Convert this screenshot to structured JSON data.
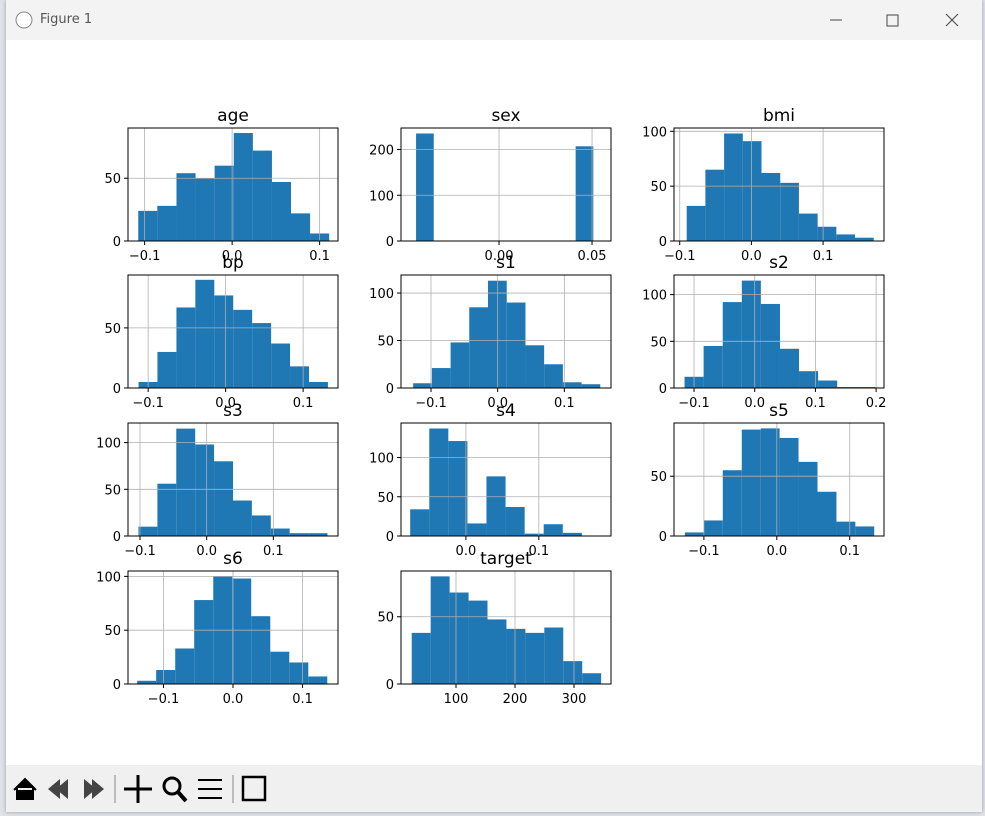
{
  "window": {
    "title": "Figure 1"
  },
  "chart_data": [
    {
      "type": "histogram",
      "title": "age",
      "color": "#1f77b4",
      "grid": true,
      "bins": [
        -0.1073,
        -0.0855,
        -0.0636,
        -0.0418,
        -0.02,
        0.0019,
        0.0237,
        0.0455,
        0.0673,
        0.0891,
        0.1109
      ],
      "values": [
        24,
        28,
        54,
        50,
        60,
        86,
        72,
        47,
        22,
        6
      ],
      "xlim": [
        -0.119,
        0.121
      ],
      "xticks": [
        {
          "value": -0.1,
          "label": "−0.1"
        },
        {
          "value": 0,
          "label": "0.0"
        },
        0.1
      ],
      "ylim": [
        0,
        90
      ],
      "yticks": [
        0,
        50
      ]
    },
    {
      "type": "histogram",
      "title": "sex",
      "color": "#1f77b4",
      "grid": true,
      "bins": [
        -0.0446,
        -0.0351,
        -0.0256,
        -0.016,
        -0.0065,
        0.003,
        0.0126,
        0.0221,
        0.0316,
        0.0412,
        0.0507
      ],
      "values": [
        235,
        0,
        0,
        0,
        0,
        0,
        0,
        0,
        0,
        207
      ],
      "xlim": [
        -0.0527,
        0.0602
      ],
      "xticks": [
        {
          "value": 0,
          "label": "0.00"
        },
        0.05
      ],
      "ylim": [
        0,
        247
      ],
      "yticks": [
        0,
        100,
        200
      ]
    },
    {
      "type": "histogram",
      "title": "bmi",
      "color": "#1f77b4",
      "grid": true,
      "bins": [
        -0.0903,
        -0.0642,
        -0.0381,
        -0.012,
        0.0141,
        0.0402,
        0.0663,
        0.0924,
        0.1185,
        0.1445,
        0.1706
      ],
      "values": [
        32,
        65,
        98,
        91,
        62,
        53,
        25,
        13,
        6,
        3
      ],
      "xlim": [
        -0.108,
        0.185
      ],
      "xticks": [
        {
          "value": -0.1,
          "label": "−0.1"
        },
        {
          "value": 0,
          "label": "0.0"
        },
        0.1
      ],
      "ylim": [
        0,
        103
      ],
      "yticks": [
        0,
        50,
        100
      ]
    },
    {
      "type": "histogram",
      "title": "bp",
      "color": "#1f77b4",
      "grid": true,
      "bins": [
        -0.1124,
        -0.088,
        -0.0635,
        -0.0391,
        -0.0146,
        0.0098,
        0.0342,
        0.0587,
        0.0831,
        0.1076,
        0.132
      ],
      "values": [
        5,
        30,
        67,
        90,
        77,
        65,
        54,
        37,
        18,
        5
      ],
      "xlim": [
        -0.126,
        0.145
      ],
      "xticks": [
        {
          "value": -0.1,
          "label": "−0.1"
        },
        {
          "value": 0,
          "label": "0.0"
        },
        0.1
      ],
      "ylim": [
        0,
        94
      ],
      "yticks": [
        0,
        50
      ]
    },
    {
      "type": "histogram",
      "title": "s1",
      "color": "#1f77b4",
      "grid": true,
      "bins": [
        -0.1268,
        -0.0987,
        -0.0706,
        -0.0426,
        -0.0145,
        0.0136,
        0.0417,
        0.0697,
        0.0978,
        0.1259,
        0.1539
      ],
      "values": [
        5,
        21,
        48,
        85,
        113,
        90,
        45,
        25,
        6,
        4
      ],
      "xlim": [
        -0.145,
        0.17
      ],
      "xticks": [
        {
          "value": -0.1,
          "label": "−0.1"
        },
        {
          "value": 0,
          "label": "0.0"
        },
        0.1
      ],
      "ylim": [
        0,
        119
      ],
      "yticks": [
        0,
        50,
        100
      ]
    },
    {
      "type": "histogram",
      "title": "s2",
      "color": "#1f77b4",
      "grid": true,
      "bins": [
        -0.1156,
        -0.0842,
        -0.0527,
        -0.0213,
        0.0101,
        0.0416,
        0.073,
        0.1044,
        0.1359,
        0.1673,
        0.1988
      ],
      "values": [
        12,
        45,
        92,
        115,
        90,
        42,
        18,
        8,
        1,
        1
      ],
      "xlim": [
        -0.133,
        0.213
      ],
      "xticks": [
        {
          "value": -0.1,
          "label": "−0.1"
        },
        {
          "value": 0,
          "label": "0.0"
        },
        0.1,
        0.2
      ],
      "ylim": [
        0,
        121
      ],
      "yticks": [
        0,
        50,
        100
      ]
    },
    {
      "type": "histogram",
      "title": "s3",
      "color": "#1f77b4",
      "grid": true,
      "bins": [
        -0.1023,
        -0.0739,
        -0.0456,
        -0.0172,
        0.0111,
        0.0395,
        0.0678,
        0.0962,
        0.1245,
        0.1529,
        0.1812
      ],
      "values": [
        10,
        56,
        115,
        98,
        80,
        38,
        22,
        8,
        3,
        3
      ],
      "xlim": [
        -0.118,
        0.197
      ],
      "xticks": [
        {
          "value": -0.1,
          "label": "−0.1"
        },
        {
          "value": 0,
          "label": "0.0"
        },
        0.1
      ],
      "ylim": [
        0,
        121
      ],
      "yticks": [
        0,
        50,
        100
      ]
    },
    {
      "type": "histogram",
      "title": "s4",
      "color": "#1f77b4",
      "grid": true,
      "bins": [
        -0.0764,
        -0.0502,
        -0.0241,
        0.0021,
        0.0282,
        0.0544,
        0.0806,
        0.1067,
        0.1329,
        0.159,
        0.1852
      ],
      "values": [
        34,
        137,
        121,
        16,
        76,
        37,
        3,
        15,
        4,
        0
      ],
      "xlim": [
        -0.089,
        0.199
      ],
      "xticks": [
        {
          "value": 0,
          "label": "0.0"
        },
        0.1
      ],
      "ylim": [
        0,
        144
      ],
      "yticks": [
        0,
        50,
        100
      ]
    },
    {
      "type": "histogram",
      "title": "s5",
      "color": "#1f77b4",
      "grid": true,
      "bins": [
        -0.1261,
        -0.1001,
        -0.0741,
        -0.0481,
        -0.0221,
        0.0038,
        0.0298,
        0.0558,
        0.0818,
        0.1077,
        0.1336
      ],
      "values": [
        3,
        13,
        55,
        89,
        90,
        82,
        62,
        37,
        12,
        8
      ],
      "xlim": [
        -0.141,
        0.147
      ],
      "xticks": [
        {
          "value": -0.1,
          "label": "−0.1"
        },
        {
          "value": 0,
          "label": "0.0"
        },
        0.1
      ],
      "ylim": [
        0,
        94.5
      ],
      "yticks": [
        0,
        50
      ]
    },
    {
      "type": "histogram",
      "title": "s6",
      "color": "#1f77b4",
      "grid": true,
      "bins": [
        -0.1378,
        -0.1105,
        -0.0831,
        -0.0558,
        -0.0284,
        -0.0011,
        0.0262,
        0.0536,
        0.0809,
        0.1083,
        0.1356
      ],
      "values": [
        3,
        13,
        33,
        78,
        100,
        98,
        63,
        30,
        20,
        7
      ],
      "xlim": [
        -0.151,
        0.151
      ],
      "xticks": [
        {
          "value": -0.1,
          "label": "−0.1"
        },
        {
          "value": 0,
          "label": "0.0"
        },
        0.1
      ],
      "ylim": [
        0,
        105
      ],
      "yticks": [
        0,
        50,
        100
      ]
    },
    {
      "type": "histogram",
      "title": "target",
      "color": "#1f77b4",
      "grid": true,
      "bins": [
        25,
        57.1,
        89.2,
        121.3,
        153.4,
        185.5,
        217.6,
        249.7,
        281.8,
        313.9,
        346
      ],
      "values": [
        38,
        80,
        68,
        62,
        48,
        41,
        38,
        42,
        17,
        8
      ],
      "xlim": [
        6.8,
        362.7
      ],
      "xticks": [
        100,
        200,
        300
      ],
      "ylim": [
        0,
        84
      ],
      "yticks": [
        0,
        50
      ]
    }
  ]
}
